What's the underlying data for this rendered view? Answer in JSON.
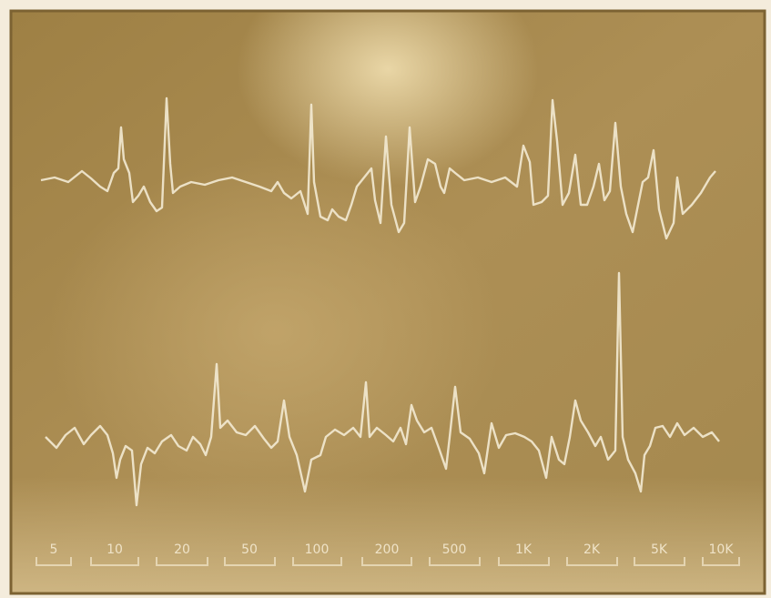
{
  "scale_labels": [
    "5",
    "10",
    "20",
    "50",
    "100",
    "200",
    "500",
    "1K",
    "2K",
    "5K",
    "10K"
  ]
}
